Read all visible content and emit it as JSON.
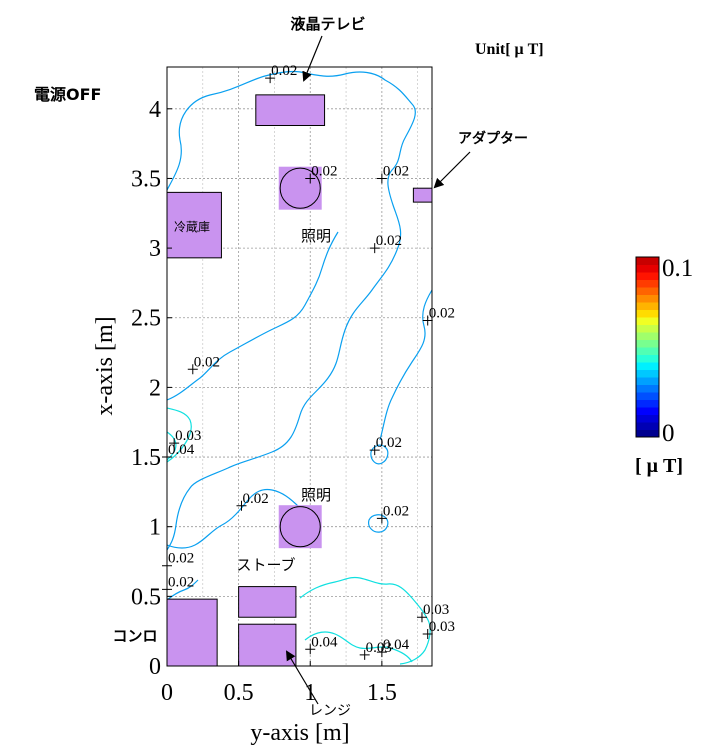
{
  "status_label": "電源OFF",
  "unit_label": "Unit[ μ T]",
  "chart_data": {
    "type": "contour",
    "xlabel": "y-axis [m]",
    "ylabel": "x-axis [m]",
    "xlim": [
      0,
      1.85
    ],
    "ylim": [
      0,
      4.3
    ],
    "x_ticks": [
      0,
      0.5,
      1,
      1.5
    ],
    "x_tick_labels": [
      "0",
      "0.5",
      "1",
      "1.5"
    ],
    "y_ticks": [
      0,
      0.5,
      1,
      1.5,
      2,
      2.5,
      3,
      3.5,
      4
    ],
    "y_tick_labels": [
      "0",
      "0.5",
      "1",
      "1.5",
      "2",
      "2.5",
      "3",
      "3.5",
      "4"
    ],
    "grid": true,
    "colorbar": {
      "min_label": "0",
      "max_label": "0.1",
      "unit": "[ μ T]",
      "colors": [
        "#00008f",
        "#0000b4",
        "#0000d8",
        "#0000ff",
        "#0028ff",
        "#0050ff",
        "#0078ff",
        "#00a0ff",
        "#00c8ff",
        "#00f0ff",
        "#28ffd8",
        "#50ffb4",
        "#78ff8f",
        "#a0ff6b",
        "#c8ff48",
        "#f0ff24",
        "#ffdc00",
        "#ffb400",
        "#ff8c00",
        "#ff6400",
        "#ff3c00",
        "#ff1400",
        "#e60000",
        "#c80000"
      ]
    },
    "contour_lines": [
      {
        "color": "#00a0ff",
        "level": 0.02
      },
      {
        "color": "#00e8e8",
        "level": 0.03
      },
      {
        "color": "#00e8e8",
        "level": 0.04
      }
    ],
    "value_labels": [
      {
        "text": "0.02",
        "x": 0.72,
        "y": 4.22
      },
      {
        "text": "0.02",
        "x": 1.0,
        "y": 3.5
      },
      {
        "text": "0.02",
        "x": 1.5,
        "y": 3.5
      },
      {
        "text": "0.02",
        "x": 1.45,
        "y": 3.0
      },
      {
        "text": "0.02",
        "x": 1.82,
        "y": 2.48
      },
      {
        "text": "0.02",
        "x": 0.18,
        "y": 2.13
      },
      {
        "text": "0.03",
        "x": 0.05,
        "y": 1.6
      },
      {
        "text": "0.04",
        "x": 0.0,
        "y": 1.5
      },
      {
        "text": "0.02",
        "x": 1.45,
        "y": 1.55
      },
      {
        "text": "0.02",
        "x": 0.52,
        "y": 1.15
      },
      {
        "text": "0.02",
        "x": 1.5,
        "y": 1.06
      },
      {
        "text": "0.02",
        "x": 0.0,
        "y": 0.72
      },
      {
        "text": "0.02",
        "x": 0.0,
        "y": 0.55
      },
      {
        "text": "0.03",
        "x": 1.78,
        "y": 0.35
      },
      {
        "text": "0.03",
        "x": 1.82,
        "y": 0.23
      },
      {
        "text": "0.04",
        "x": 1.0,
        "y": 0.12
      },
      {
        "text": "0.03",
        "x": 1.38,
        "y": 0.08
      },
      {
        "text": "0.04",
        "x": 1.5,
        "y": 0.1
      }
    ],
    "objects": [
      {
        "label": "液晶テレビ",
        "shape": "rect",
        "x0": 0.62,
        "x1": 1.1,
        "y0": 3.88,
        "y1": 4.1
      },
      {
        "label": "アダプター",
        "shape": "rect",
        "x0": 1.72,
        "x1": 1.85,
        "y0": 3.33,
        "y1": 3.43
      },
      {
        "label": "照明",
        "shape": "circle",
        "cx": 0.93,
        "cy": 3.43,
        "r": 0.14
      },
      {
        "label": "冷蔵庫",
        "shape": "rect",
        "x0": 0.0,
        "x1": 0.38,
        "y0": 2.93,
        "y1": 3.4
      },
      {
        "label": "照明",
        "shape": "circle",
        "cx": 0.93,
        "cy": 1.0,
        "r": 0.14
      },
      {
        "label": "ストーブ",
        "shape": "rect",
        "x0": 0.5,
        "x1": 0.9,
        "y0": 0.35,
        "y1": 0.57
      },
      {
        "label": "コンロ",
        "shape": "rect",
        "x0": 0.0,
        "x1": 0.35,
        "y0": 0.0,
        "y1": 0.48
      },
      {
        "label": "レンジ",
        "shape": "rect",
        "x0": 0.5,
        "x1": 0.9,
        "y0": 0.0,
        "y1": 0.3
      }
    ]
  }
}
